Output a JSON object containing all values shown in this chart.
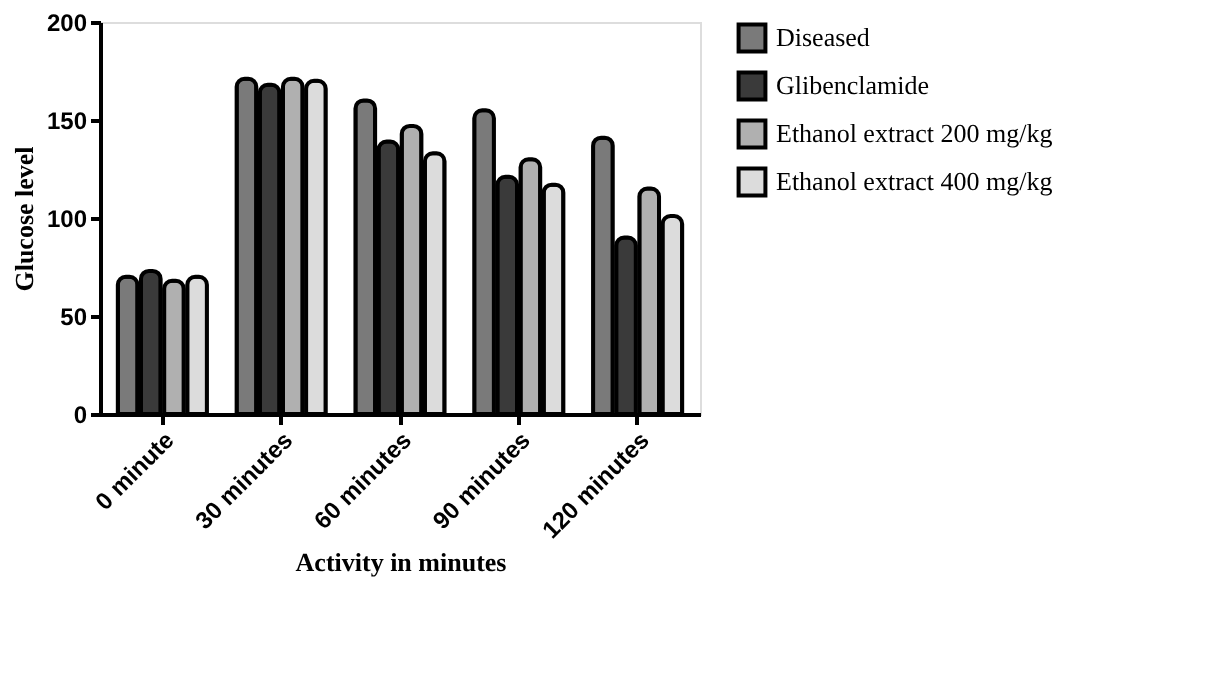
{
  "chart_data": {
    "type": "bar",
    "xlabel": "Activity in minutes",
    "ylabel": "Glucose level",
    "categories": [
      "0 minute",
      "30 minutes",
      "60 minutes",
      "90 minutes",
      "120 minutes"
    ],
    "series": [
      {
        "name": "Diseased",
        "color": "#7a7a7a",
        "values": [
          70,
          171,
          160,
          155,
          141
        ]
      },
      {
        "name": "Glibenclamide",
        "color": "#3a3a3a",
        "values": [
          73,
          168,
          139,
          121,
          90
        ]
      },
      {
        "name": "Ethanol extract 200 mg/kg",
        "color": "#b0b0b0",
        "values": [
          68,
          171,
          147,
          130,
          115
        ]
      },
      {
        "name": "Ethanol extract 400 mg/kg",
        "color": "#dcdcdc",
        "values": [
          70,
          170,
          133,
          117,
          101
        ]
      }
    ],
    "ylim": [
      0,
      200
    ],
    "yticks": [
      0,
      50,
      100,
      150,
      200
    ],
    "grid": false,
    "legend": "top right"
  }
}
